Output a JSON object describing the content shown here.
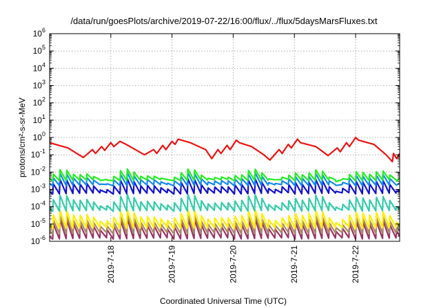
{
  "chart_data": {
    "type": "line",
    "title": "/data/run/goesPlots/archive/2019-07-22/16:00/flux/../flux/5daysMarsFluxes.txt",
    "xlabel": "Coordinated Universal Time (UTC)",
    "ylabel": "protons/cm²-s-sr-MeV",
    "yscale": "log",
    "ylim": [
      1e-06,
      1000000.0
    ],
    "xlim": [
      0,
      5.72
    ],
    "x_unit": "days since 2019-7-17 00:00 UTC",
    "yticks": [
      {
        "base": "10",
        "exp": "-6"
      },
      {
        "base": "10",
        "exp": "-5"
      },
      {
        "base": "10",
        "exp": "-4"
      },
      {
        "base": "10",
        "exp": "-3"
      },
      {
        "base": "10",
        "exp": "-2"
      },
      {
        "base": "10",
        "exp": "-1"
      },
      {
        "base": "10",
        "exp": "0"
      },
      {
        "base": "10",
        "exp": "1"
      },
      {
        "base": "10",
        "exp": "2"
      },
      {
        "base": "10",
        "exp": "3"
      },
      {
        "base": "10",
        "exp": "4"
      },
      {
        "base": "10",
        "exp": "5"
      },
      {
        "base": "10",
        "exp": "6"
      }
    ],
    "xticks": [
      {
        "x": 1,
        "label": "2019-7-18"
      },
      {
        "x": 2,
        "label": "2019-7-19"
      },
      {
        "x": 3,
        "label": "2019-7-20"
      },
      {
        "x": 4,
        "label": "2019-7-21"
      },
      {
        "x": 5,
        "label": "2019-7-22"
      }
    ],
    "grid": true,
    "legend": "none",
    "series": [
      {
        "color": "#ee1111",
        "style": "smooth",
        "points": [
          [
            0,
            0.5
          ],
          [
            0.3,
            0.25
          ],
          [
            0.55,
            0.07
          ],
          [
            0.7,
            0.2
          ],
          [
            0.75,
            0.12
          ],
          [
            0.85,
            0.3
          ],
          [
            0.9,
            0.18
          ],
          [
            1.0,
            0.5
          ],
          [
            1.05,
            0.3
          ],
          [
            1.15,
            0.6
          ],
          [
            1.25,
            0.4
          ],
          [
            1.4,
            0.2
          ],
          [
            1.55,
            0.1
          ],
          [
            1.7,
            0.2
          ],
          [
            1.75,
            0.12
          ],
          [
            1.85,
            0.35
          ],
          [
            1.9,
            0.2
          ],
          [
            2.0,
            0.6
          ],
          [
            2.05,
            0.4
          ],
          [
            2.1,
            0.8
          ],
          [
            2.3,
            0.5
          ],
          [
            2.55,
            0.2
          ],
          [
            2.65,
            0.06
          ],
          [
            2.75,
            0.2
          ],
          [
            2.8,
            0.12
          ],
          [
            2.9,
            0.35
          ],
          [
            2.95,
            0.2
          ],
          [
            3.05,
            0.7
          ],
          [
            3.1,
            0.5
          ],
          [
            3.3,
            0.3
          ],
          [
            3.5,
            0.1
          ],
          [
            3.6,
            0.05
          ],
          [
            3.75,
            0.2
          ],
          [
            3.8,
            0.12
          ],
          [
            3.9,
            0.4
          ],
          [
            3.95,
            0.25
          ],
          [
            4.05,
            0.8
          ],
          [
            4.1,
            0.5
          ],
          [
            4.35,
            0.3
          ],
          [
            4.55,
            0.09
          ],
          [
            4.7,
            0.25
          ],
          [
            4.75,
            0.15
          ],
          [
            4.85,
            0.5
          ],
          [
            4.9,
            0.3
          ],
          [
            5.0,
            1.0
          ],
          [
            5.05,
            0.7
          ],
          [
            5.3,
            0.4
          ],
          [
            5.5,
            0.1
          ],
          [
            5.6,
            0.04
          ],
          [
            5.62,
            0.12
          ],
          [
            5.67,
            0.06
          ],
          [
            5.72,
            0.12
          ]
        ]
      },
      {
        "color": "#22ee22",
        "style": "sawtooth",
        "period": 0.11,
        "start": 0.05,
        "end": 5.72,
        "low": 0.0035,
        "high": 0.009
      },
      {
        "color": "#1188ee",
        "style": "sawtooth",
        "period": 0.11,
        "start": 0.05,
        "end": 5.72,
        "low": 0.0018,
        "high": 0.0055
      },
      {
        "color": "#1111cc",
        "style": "sawtooth",
        "period": 0.11,
        "start": 0.05,
        "end": 5.72,
        "low": 0.0006,
        "high": 0.0025
      },
      {
        "color": "#33ccaa",
        "style": "sawtooth",
        "period": 0.11,
        "start": 0.05,
        "end": 5.72,
        "low": 6e-05,
        "high": 0.0003
      },
      {
        "color": "#ffee00",
        "style": "sawtooth",
        "period": 0.11,
        "start": 0.05,
        "end": 5.72,
        "low": 6e-06,
        "high": 4e-05
      },
      {
        "color": "#aa8866",
        "style": "sawtooth",
        "period": 0.11,
        "start": 0.05,
        "end": 5.72,
        "low": 3e-06,
        "high": 2e-05
      },
      {
        "color": "#993366",
        "style": "sawtooth",
        "period": 0.11,
        "start": 0.05,
        "end": 5.72,
        "low": 1.5e-06,
        "high": 1.2e-05
      }
    ]
  }
}
